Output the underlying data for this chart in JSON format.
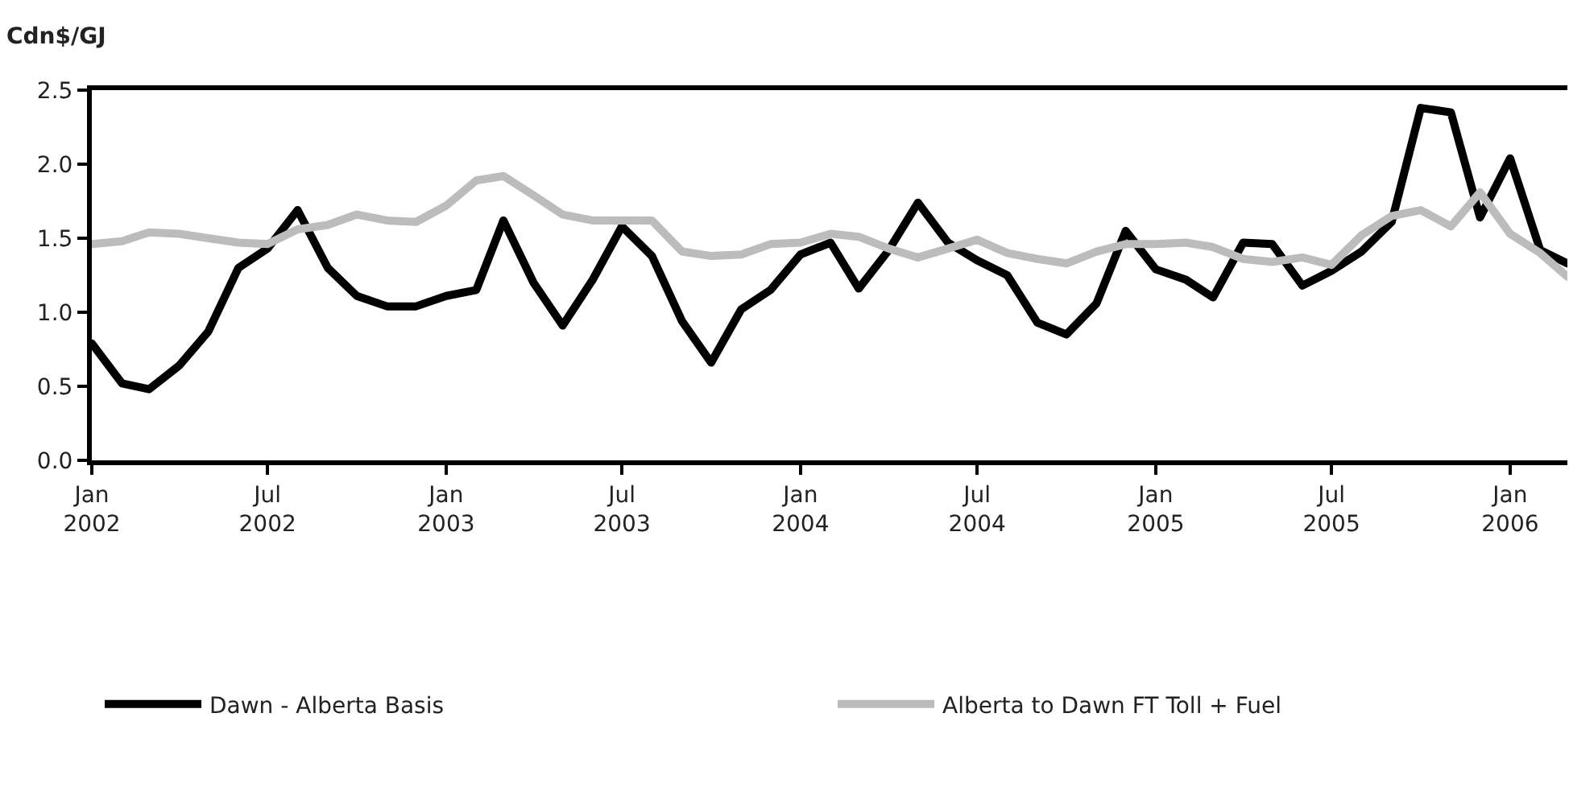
{
  "chart_data": {
    "type": "line",
    "ylabel": "Cdn$/GJ",
    "x": [
      "2002-01",
      "2002-02",
      "2002-03",
      "2002-04",
      "2002-05",
      "2002-06",
      "2002-07",
      "2002-08",
      "2002-09",
      "2002-10",
      "2002-11",
      "2002-12",
      "2003-01",
      "2003-02",
      "2003-03",
      "2003-04",
      "2003-05",
      "2003-06",
      "2003-07",
      "2003-08",
      "2003-09",
      "2003-10",
      "2003-11",
      "2003-12",
      "2004-01",
      "2004-02",
      "2004-03",
      "2004-04",
      "2004-05",
      "2004-06",
      "2004-07",
      "2004-08",
      "2004-09",
      "2004-10",
      "2004-11",
      "2004-12",
      "2005-01",
      "2005-02",
      "2005-03",
      "2005-04",
      "2005-05",
      "2005-06",
      "2005-07",
      "2005-08",
      "2005-09",
      "2005-10",
      "2005-11",
      "2005-12",
      "2006-01",
      "2006-02",
      "2006-03"
    ],
    "series": [
      {
        "name": "Dawn - Alberta Basis",
        "color": "#000000",
        "values": [
          0.79,
          0.52,
          0.48,
          0.64,
          0.87,
          1.3,
          1.43,
          1.69,
          1.3,
          1.11,
          1.04,
          1.04,
          1.11,
          1.15,
          1.62,
          1.2,
          0.91,
          1.22,
          1.58,
          1.38,
          0.94,
          0.66,
          1.02,
          1.15,
          1.39,
          1.47,
          1.16,
          1.42,
          1.74,
          1.47,
          1.35,
          1.25,
          0.93,
          0.85,
          1.06,
          1.55,
          1.29,
          1.22,
          1.1,
          1.47,
          1.46,
          1.18,
          1.28,
          1.41,
          1.61,
          2.38,
          2.35,
          1.64,
          2.04,
          1.42,
          1.33
        ]
      },
      {
        "name": "Alberta to Dawn FT Toll + Fuel",
        "color": "#bbbcbe",
        "values": [
          1.46,
          1.48,
          1.54,
          1.53,
          1.5,
          1.47,
          1.46,
          1.56,
          1.59,
          1.66,
          1.62,
          1.61,
          1.72,
          1.89,
          1.92,
          1.79,
          1.66,
          1.62,
          1.62,
          1.62,
          1.41,
          1.38,
          1.39,
          1.46,
          1.47,
          1.53,
          1.51,
          1.43,
          1.37,
          1.43,
          1.49,
          1.4,
          1.36,
          1.33,
          1.41,
          1.46,
          1.46,
          1.47,
          1.44,
          1.36,
          1.34,
          1.37,
          1.32,
          1.52,
          1.65,
          1.69,
          1.58,
          1.81,
          1.53,
          1.4,
          1.24
        ]
      }
    ],
    "xlim": [
      "2002-01-01",
      "2006-03-01"
    ],
    "xticks": [
      {
        "value": "2002-01",
        "label": "Jan 2002"
      },
      {
        "value": "2002-07",
        "label": "Jul 2002"
      },
      {
        "value": "2003-01",
        "label": "Jan 2003"
      },
      {
        "value": "2003-07",
        "label": "Jul 2003"
      },
      {
        "value": "2004-01",
        "label": "Jan 2004"
      },
      {
        "value": "2004-07",
        "label": "Jul 2004"
      },
      {
        "value": "2005-01",
        "label": "Jan 2005"
      },
      {
        "value": "2005-07",
        "label": "Jul 2005"
      },
      {
        "value": "2006-01",
        "label": "Jan 2006"
      }
    ],
    "ylim": [
      0,
      2.5
    ],
    "yticks": [
      {
        "value": 0,
        "label": "0.0"
      },
      {
        "value": 0.5,
        "label": "0.5"
      },
      {
        "value": 1,
        "label": "1.0"
      },
      {
        "value": 1.5,
        "label": "1.5"
      },
      {
        "value": 2,
        "label": "2.0"
      },
      {
        "value": 2.5,
        "label": "2.5"
      }
    ],
    "grid": false,
    "legend": "bottom",
    "marker": "none",
    "line_style": "solid"
  }
}
